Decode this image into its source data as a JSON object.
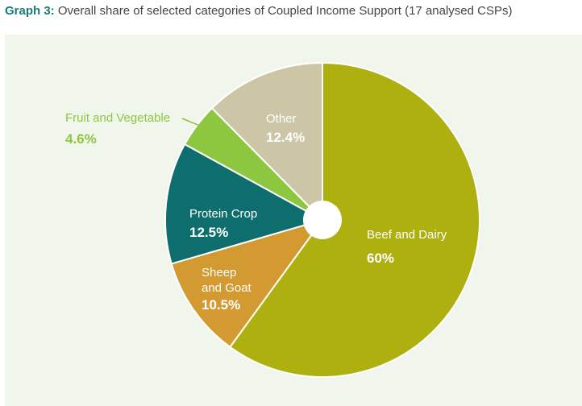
{
  "header": {
    "label": "Graph 3:",
    "title": "Overall share of selected categories of Coupled Income Support (17 analysed CSPs)"
  },
  "chart_data": {
    "type": "pie",
    "donut": true,
    "start": "12 o'clock, clockwise",
    "slices": [
      {
        "label": "Beef and Dairy",
        "label_lines": [
          "Beef and Dairy"
        ],
        "value": 60,
        "value_text": "60%",
        "color": "#aeb010",
        "text_color": "#ffffff",
        "label_position": "inside"
      },
      {
        "label": "Sheep and Goat",
        "label_lines": [
          "Sheep",
          "and Goat"
        ],
        "value": 10.5,
        "value_text": "10.5%",
        "color": "#d29a30",
        "text_color": "#ffffff",
        "label_position": "inside"
      },
      {
        "label": "Protein Crop",
        "label_lines": [
          "Protein Crop"
        ],
        "value": 12.5,
        "value_text": "12.5%",
        "color": "#0e6e6e",
        "text_color": "#ffffff",
        "label_position": "inside"
      },
      {
        "label": "Fruit and Vegetable",
        "label_lines": [
          "Fruit and Vegetable"
        ],
        "value": 4.6,
        "value_text": "4.6%",
        "color": "#8dc63f",
        "text_color": "#8dc63f",
        "label_position": "outside"
      },
      {
        "label": "Other",
        "label_lines": [
          "Other"
        ],
        "value": 12.4,
        "value_text": "12.4%",
        "color": "#cdc6a6",
        "text_color": "#ffffff",
        "label_position": "inside"
      }
    ]
  }
}
